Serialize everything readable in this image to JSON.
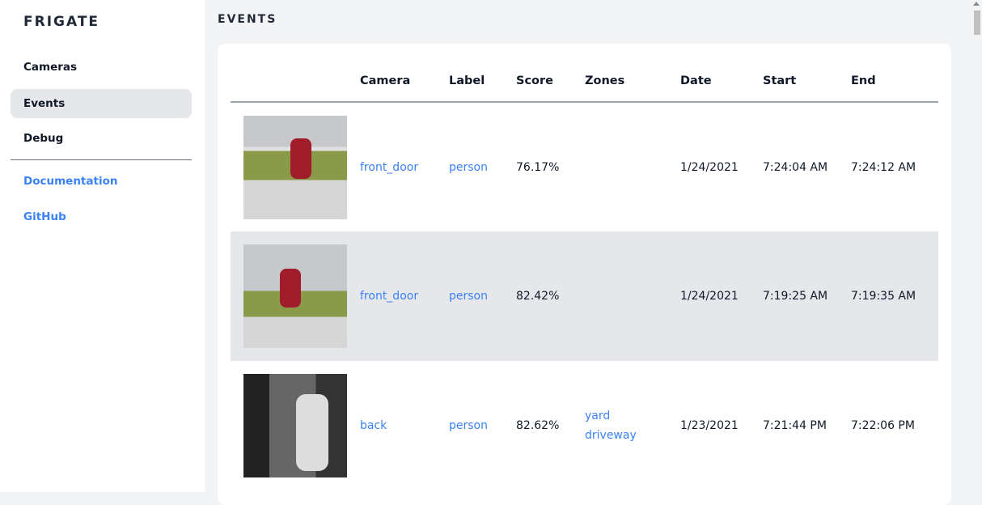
{
  "sidebar": {
    "brand": "FRIGATE",
    "items": [
      {
        "label": "Cameras"
      },
      {
        "label": "Events",
        "active": true
      },
      {
        "label": "Debug"
      }
    ],
    "links": [
      {
        "label": "Documentation"
      },
      {
        "label": "GitHub"
      }
    ]
  },
  "main": {
    "title": "EVENTS",
    "columns": [
      "",
      "Camera",
      "Label",
      "Score",
      "Zones",
      "Date",
      "Start",
      "End"
    ],
    "rows": [
      {
        "camera": "front_door",
        "label": "person",
        "score": "76.17%",
        "zones": [
          "",
          ""
        ],
        "date": "1/24/2021",
        "start": "7:24:04 AM",
        "end": "7:24:12 AM"
      },
      {
        "camera": "front_door",
        "label": "person",
        "score": "82.42%",
        "zones": [
          "",
          ""
        ],
        "date": "1/24/2021",
        "start": "7:19:25 AM",
        "end": "7:19:35 AM"
      },
      {
        "camera": "back",
        "label": "person",
        "score": "82.62%",
        "zones": [
          "yard",
          "driveway"
        ],
        "date": "1/23/2021",
        "start": "7:21:44 PM",
        "end": "7:22:06 PM"
      }
    ]
  },
  "colors": {
    "accent": "#3b82f6",
    "active_bg": "#e5e7eb"
  }
}
